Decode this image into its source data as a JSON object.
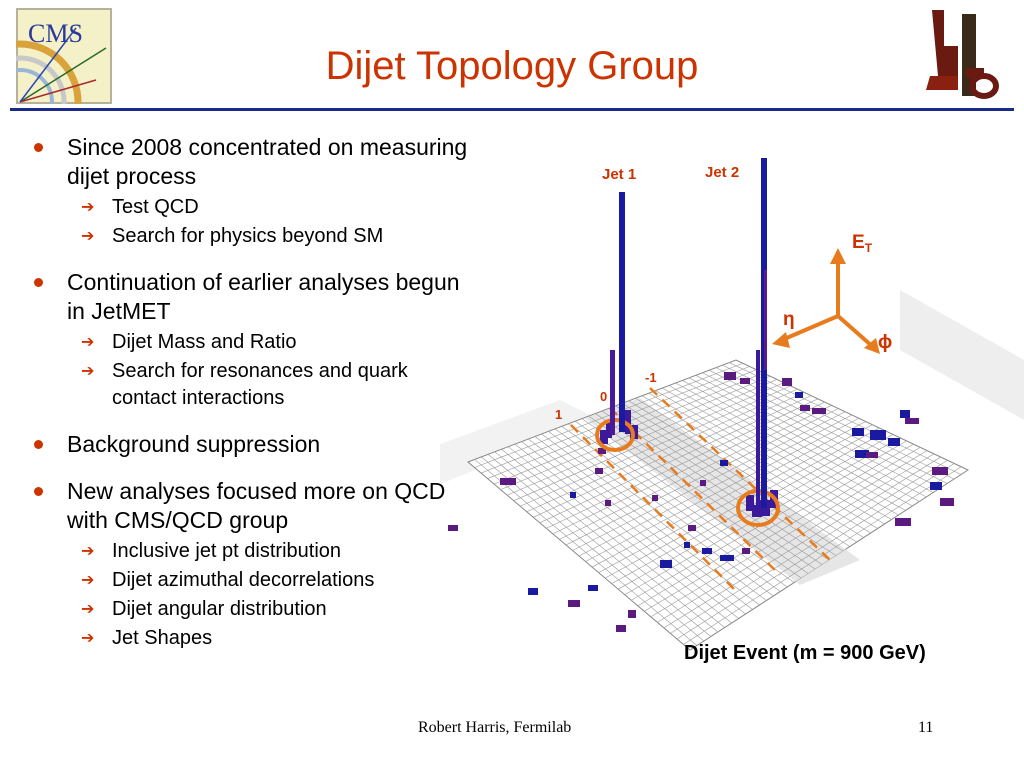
{
  "title": "Dijet Topology Group",
  "logos": {
    "left": "CMS",
    "right": "LPC"
  },
  "bullets": [
    {
      "text": "Since 2008 concentrated on measuring dijet process",
      "subs": [
        "Test QCD",
        "Search for physics beyond SM"
      ]
    },
    {
      "text": "Continuation of earlier analyses begun in JetMET",
      "subs": [
        "Dijet Mass and Ratio",
        "Search for resonances  and quark contact interactions"
      ]
    },
    {
      "text": "Background suppression",
      "subs": []
    },
    {
      "text": "New analyses focused more on QCD with CMS/QCD group",
      "subs": [
        "Inclusive jet pt distribution",
        "Dijet azimuthal decorrelations",
        "Dijet angular distribution",
        "Jet Shapes"
      ]
    }
  ],
  "figure": {
    "jet1": "Jet 1",
    "jet2": "Jet 2",
    "et_label": "E",
    "et_sub": "T",
    "eta": "η",
    "phi": "ϕ",
    "tick_minus1": "-1",
    "tick_0": "0",
    "tick_1": "1",
    "caption": "Dijet Event (m = 900 GeV)"
  },
  "colors": {
    "title": "#cc3300",
    "accent": "#cc3300",
    "rule": "#1a2a8a",
    "jet": "#1a1aa0",
    "cell": "#5a1a80",
    "orange": "#e87b1e"
  },
  "footer": "Robert Harris, Fermilab",
  "page_number": "11"
}
